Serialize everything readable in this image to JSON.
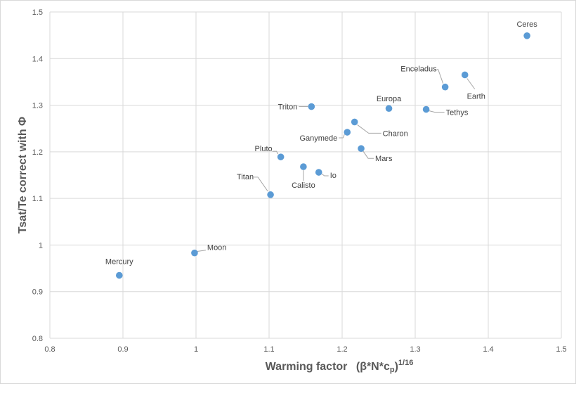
{
  "chart_data": {
    "type": "scatter",
    "xlabel": {
      "main": "Warming factor",
      "formula": "(β*N*c",
      "formula_sub": "p",
      "formula_end": ")",
      "exponent": "1/16"
    },
    "ylabel": "Tsat/Te correct with Φ",
    "xlim": [
      0.8,
      1.5
    ],
    "ylim": [
      0.8,
      1.5
    ],
    "x_ticks": [
      0.8,
      0.9,
      1.0,
      1.1,
      1.2,
      1.3,
      1.4,
      1.5
    ],
    "x_tick_labels": [
      "0.8",
      "0.9",
      "1",
      "1.1",
      "1.2",
      "1.3",
      "1.4",
      "1.5"
    ],
    "y_ticks": [
      0.8,
      0.9,
      1.0,
      1.1,
      1.2,
      1.3,
      1.4,
      1.5
    ],
    "y_tick_labels": [
      "0.8",
      "0.9",
      "1",
      "1.1",
      "1.2",
      "1.3",
      "1.4",
      "1.5"
    ],
    "grid": true,
    "marker_color": "#5b9bd5",
    "points": [
      {
        "name": "Mercury",
        "x": 0.895,
        "y": 0.935
      },
      {
        "name": "Moon",
        "x": 0.998,
        "y": 0.983
      },
      {
        "name": "Titan",
        "x": 1.102,
        "y": 1.108
      },
      {
        "name": "Pluto",
        "x": 1.116,
        "y": 1.189
      },
      {
        "name": "Calisto",
        "x": 1.147,
        "y": 1.168
      },
      {
        "name": "Io",
        "x": 1.168,
        "y": 1.156
      },
      {
        "name": "Triton",
        "x": 1.158,
        "y": 1.297
      },
      {
        "name": "Ganymede",
        "x": 1.207,
        "y": 1.242
      },
      {
        "name": "Charon",
        "x": 1.217,
        "y": 1.264
      },
      {
        "name": "Mars",
        "x": 1.226,
        "y": 1.207
      },
      {
        "name": "Europa",
        "x": 1.264,
        "y": 1.293
      },
      {
        "name": "Tethys",
        "x": 1.315,
        "y": 1.291
      },
      {
        "name": "Enceladus",
        "x": 1.341,
        "y": 1.339
      },
      {
        "name": "Earth",
        "x": 1.368,
        "y": 1.365
      },
      {
        "name": "Ceres",
        "x": 1.453,
        "y": 1.449
      }
    ]
  }
}
